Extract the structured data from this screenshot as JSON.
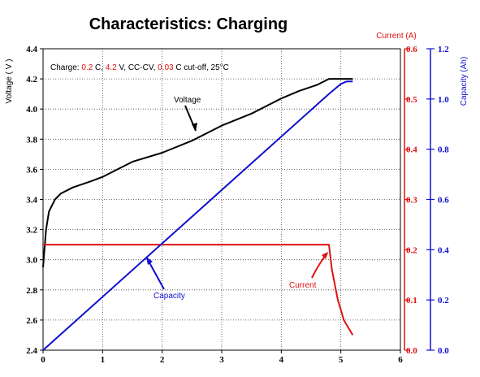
{
  "chart_data": {
    "type": "line",
    "title": "Characteristics: Charging",
    "xlabel": "",
    "xlim": [
      0,
      6
    ],
    "x_ticks": [
      "0",
      "1",
      "2",
      "3",
      "4",
      "5",
      "6"
    ],
    "axes": {
      "voltage": {
        "label": "Voltage ( V )",
        "ylim": [
          2.4,
          4.4
        ],
        "ticks": [
          "2.4",
          "2.6",
          "2.8",
          "3.0",
          "3.2",
          "3.4",
          "3.6",
          "3.8",
          "4.0",
          "4.2",
          "4.4"
        ],
        "color": "#000000"
      },
      "current": {
        "label": "Current  (A)",
        "ylim": [
          0.0,
          0.6
        ],
        "ticks": [
          "0.0",
          "0.1",
          "0.2",
          "0.3",
          "0.4",
          "0.5",
          "0.6"
        ],
        "color": "#e01010"
      },
      "capacity": {
        "label": "Capacity  (Ah)",
        "ylim": [
          0.0,
          1.2
        ],
        "ticks": [
          "0.0",
          "0.2",
          "0.4",
          "0.6",
          "0.8",
          "1.0",
          "1.2"
        ],
        "color": "#1010d0"
      }
    },
    "grid": true,
    "conditions": {
      "prefix": "Charge: ",
      "rate": "0.2",
      "rate_unit": " C, ",
      "voltage": "4.2",
      "voltage_unit": " V, CC-CV, ",
      "cutoff": "0.03",
      "cutoff_unit": " C cut-off, 25°C"
    },
    "series": [
      {
        "name": "Voltage",
        "axis": "voltage",
        "color": "#000000",
        "x": [
          0,
          0.05,
          0.1,
          0.2,
          0.3,
          0.5,
          0.8,
          1.0,
          1.5,
          2.0,
          2.5,
          3.0,
          3.5,
          4.0,
          4.3,
          4.6,
          4.75,
          4.8,
          5.0,
          5.2
        ],
        "y": [
          2.95,
          3.2,
          3.32,
          3.4,
          3.44,
          3.48,
          3.52,
          3.55,
          3.65,
          3.71,
          3.79,
          3.89,
          3.97,
          4.07,
          4.12,
          4.16,
          4.19,
          4.2,
          4.2,
          4.2
        ]
      },
      {
        "name": "Current",
        "axis": "current",
        "color": "#e01010",
        "x": [
          0,
          4.8,
          4.85,
          4.9,
          4.95,
          5.0,
          5.05,
          5.1,
          5.15,
          5.2
        ],
        "y": [
          0.21,
          0.21,
          0.16,
          0.13,
          0.1,
          0.08,
          0.06,
          0.05,
          0.04,
          0.03
        ]
      },
      {
        "name": "Capacity",
        "axis": "capacity",
        "color": "#1010d0",
        "x": [
          0,
          4.8,
          4.9,
          5.0,
          5.1,
          5.2
        ],
        "y": [
          0.0,
          1.02,
          1.04,
          1.06,
          1.07,
          1.07
        ]
      }
    ],
    "annotations": [
      {
        "text": "Voltage",
        "color": "#000000"
      },
      {
        "text": "Capacity",
        "color": "#1010d0"
      },
      {
        "text": "Current",
        "color": "#e01010"
      }
    ]
  }
}
